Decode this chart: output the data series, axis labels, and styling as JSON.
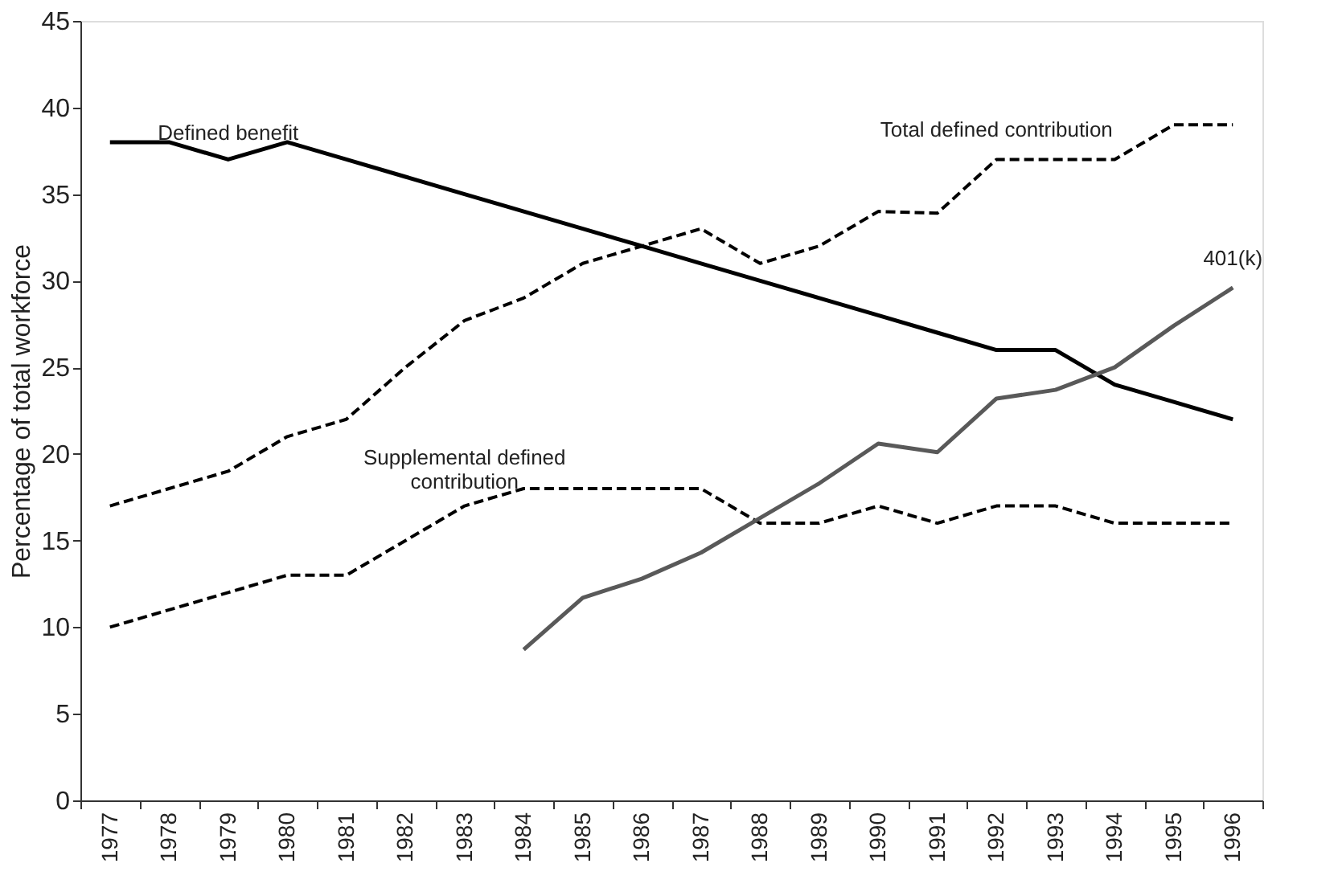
{
  "chart_data": {
    "type": "line",
    "ylabel": "Percentage of total workforce",
    "categories": [
      "1977",
      "1978",
      "1979",
      "1980",
      "1981",
      "1982",
      "1983",
      "1984",
      "1985",
      "1986",
      "1987",
      "1988",
      "1989",
      "1990",
      "1991",
      "1992",
      "1993",
      "1994",
      "1995",
      "1996"
    ],
    "series": [
      {
        "name": "Defined benefit",
        "color": "#000000",
        "line_style": "solid",
        "values": [
          38,
          38,
          37,
          38,
          37,
          36,
          35,
          34,
          33,
          32,
          31,
          30,
          29,
          28,
          27,
          26,
          26,
          24,
          23,
          22
        ]
      },
      {
        "name": "Total defined contribution",
        "color": "#000000",
        "line_style": "dashed",
        "values": [
          17,
          18,
          19,
          21,
          22,
          25,
          27.7,
          29,
          31,
          32,
          33,
          31,
          32,
          34,
          33.9,
          37,
          37,
          37,
          39,
          39
        ]
      },
      {
        "name": "Supplemental defined\ncontribution",
        "color": "#000000",
        "line_style": "dashed",
        "values": [
          10,
          11,
          12,
          13,
          13,
          15,
          17,
          18,
          18,
          18,
          18,
          16,
          16,
          17,
          16,
          17,
          17,
          16,
          16,
          16
        ]
      },
      {
        "name": "401(k)",
        "color": "#595959",
        "line_style": "solid",
        "values": [
          null,
          null,
          null,
          null,
          null,
          null,
          null,
          8.7,
          11.7,
          12.8,
          14.3,
          16.3,
          18.3,
          20.6,
          20.1,
          23.2,
          23.7,
          25,
          27.4,
          29.6
        ]
      }
    ],
    "ylim": [
      0,
      45
    ],
    "yticks": [
      0,
      5,
      10,
      15,
      20,
      25,
      30,
      35,
      40,
      45
    ],
    "grid": false,
    "legend": false,
    "marker": "none"
  }
}
